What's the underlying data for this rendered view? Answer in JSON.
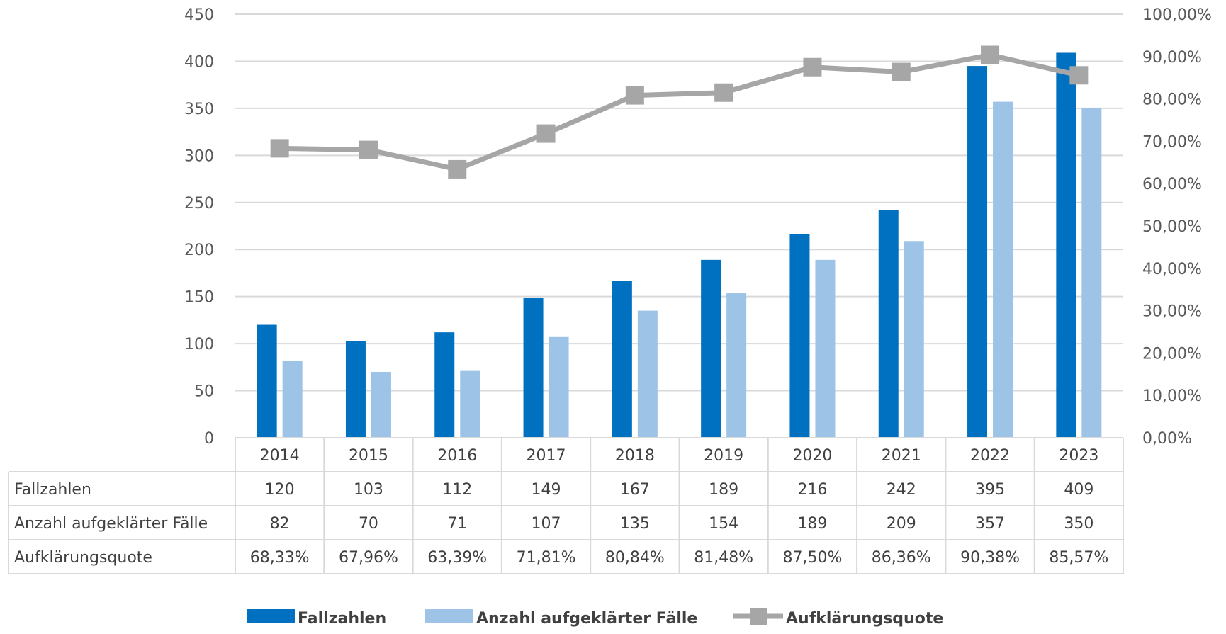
{
  "chart_data": {
    "type": "bar",
    "categories": [
      "2014",
      "2015",
      "2016",
      "2017",
      "2018",
      "2019",
      "2020",
      "2021",
      "2022",
      "2023"
    ],
    "series": [
      {
        "name": "Fallzahlen",
        "type": "bar",
        "axis": "left",
        "color": "#0070C0",
        "values": [
          120,
          103,
          112,
          149,
          167,
          189,
          216,
          242,
          395,
          409
        ]
      },
      {
        "name": "Anzahl aufgeklärter Fälle",
        "type": "bar",
        "axis": "left",
        "color": "#9DC3E6",
        "values": [
          82,
          70,
          71,
          107,
          135,
          154,
          189,
          209,
          357,
          350
        ]
      },
      {
        "name": "Aufklärungsquote",
        "type": "line",
        "axis": "right",
        "color": "#A6A6A6",
        "values": [
          68.33,
          67.96,
          63.39,
          71.81,
          80.84,
          81.48,
          87.5,
          86.36,
          90.38,
          85.57
        ]
      }
    ],
    "left_axis": {
      "min": 0,
      "max": 450,
      "ticks": [
        "0",
        "50",
        "100",
        "150",
        "200",
        "250",
        "300",
        "350",
        "400",
        "450"
      ]
    },
    "right_axis": {
      "min": 0,
      "max": 100,
      "ticks": [
        "0,00%",
        "10,00%",
        "20,00%",
        "30,00%",
        "40,00%",
        "50,00%",
        "60,00%",
        "70,00%",
        "80,00%",
        "90,00%",
        "100,00%"
      ]
    },
    "grid": true,
    "legend_position": "bottom",
    "data_table": {
      "rows": [
        {
          "label": "Fallzahlen",
          "cells": [
            "120",
            "103",
            "112",
            "149",
            "167",
            "189",
            "216",
            "242",
            "395",
            "409"
          ]
        },
        {
          "label": "Anzahl aufgeklärter Fälle",
          "cells": [
            "82",
            "70",
            "71",
            "107",
            "135",
            "154",
            "189",
            "209",
            "357",
            "350"
          ]
        },
        {
          "label": "Aufklärungsquote",
          "cells": [
            "68,33%",
            "67,96%",
            "63,39%",
            "71,81%",
            "80,84%",
            "81,48%",
            "87,50%",
            "86,36%",
            "90,38%",
            "85,57%"
          ]
        }
      ]
    },
    "legend": [
      {
        "label": "Fallzahlen",
        "type": "bar",
        "color": "#0070C0"
      },
      {
        "label": "Anzahl aufgeklärter Fälle",
        "type": "bar",
        "color": "#9DC3E6"
      },
      {
        "label": "Aufklärungsquote",
        "type": "line",
        "color": "#A6A6A6"
      }
    ]
  }
}
